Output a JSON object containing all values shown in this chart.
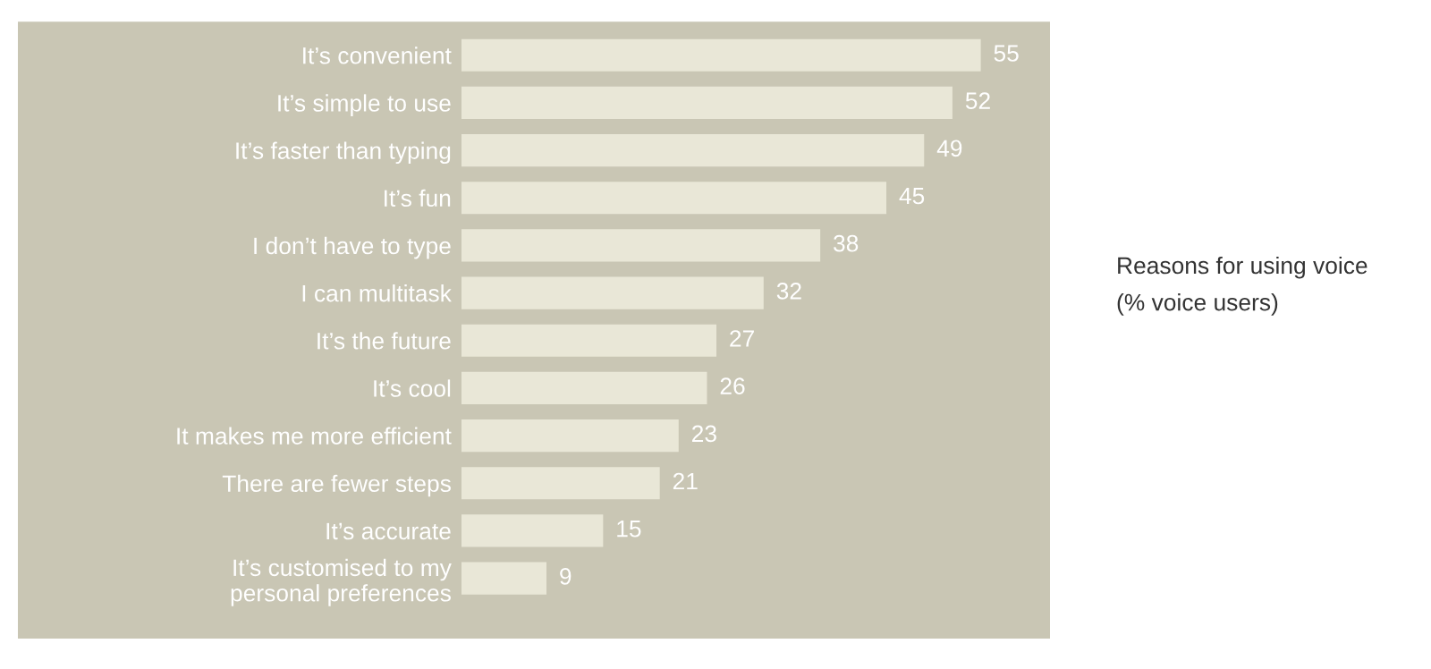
{
  "chart_data": {
    "type": "bar",
    "orientation": "horizontal",
    "title": "Reasons for using voice",
    "subtitle": "(% voice users)",
    "categories": [
      "It’s convenient",
      "It’s simple to use",
      "It’s faster than typing",
      "It’s fun",
      "I don’t have to type",
      "I can multitask",
      "It’s the future",
      "It’s cool",
      "It makes me more efficient",
      "There are fewer steps",
      "It’s accurate",
      "It’s customised to my\npersonal preferences"
    ],
    "values": [
      55,
      52,
      49,
      45,
      38,
      32,
      27,
      26,
      23,
      21,
      15,
      9
    ],
    "color": "#e9e7d7",
    "data_labels": true,
    "grid": false,
    "legend": false
  }
}
